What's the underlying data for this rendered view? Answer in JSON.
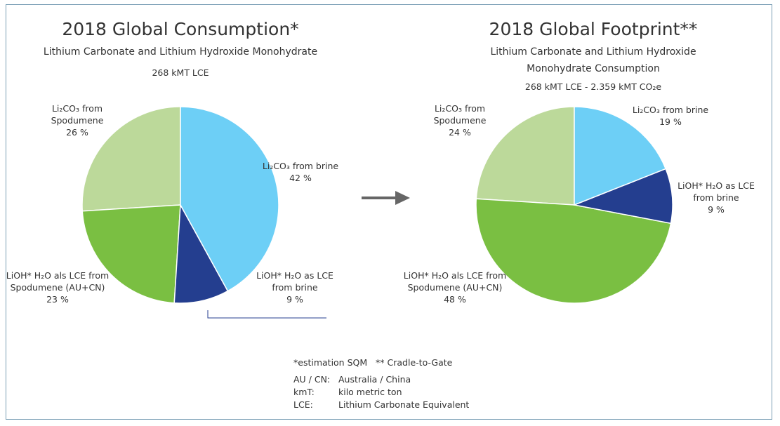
{
  "chart_data": [
    {
      "type": "pie",
      "title": "2018 Global Consumption*",
      "subtitle": [
        "Lithium Carbonate and Lithium Hydroxide Monohydrate",
        "268 kMT LCE"
      ],
      "categories": [
        "Li₂CO₃ from brine",
        "LiOH* H₂O as LCE from brine",
        "LiOH* H₂O als LCE from Spodumene (AU+CN)",
        "Li₂CO₃ from Spodumene"
      ],
      "values": [
        42,
        9,
        23,
        26
      ],
      "value_labels": [
        "42 %",
        "9 %",
        "23 %",
        "26 %"
      ],
      "colors": [
        "#6dcff6",
        "#243e8f",
        "#7abf42",
        "#bcd99a"
      ]
    },
    {
      "type": "pie",
      "title": "2018 Global Footprint**",
      "subtitle": [
        "Lithium Carbonate and Lithium Hydroxide Monohydrate Consumption",
        "268 kMT LCE - 2.359 kMT CO₂e"
      ],
      "categories": [
        "Li₂CO₃ from brine",
        "LiOH* H₂O as LCE from brine",
        "LiOH* H₂O als LCE from Spodumene (AU+CN)",
        "Li₂CO₃ from Spodumene"
      ],
      "values": [
        19,
        9,
        48,
        24
      ],
      "value_labels": [
        "19 %",
        "9 %",
        "48 %",
        "24 %"
      ],
      "colors": [
        "#6dcff6",
        "#243e8f",
        "#7abf42",
        "#bcd99a"
      ]
    }
  ],
  "footnote": "*estimation SQM   ** Cradle-to-Gate",
  "glossary": [
    [
      "AU / CN:",
      "Australia / China"
    ],
    [
      "kmT:",
      "kilo metric ton"
    ],
    [
      "LCE:",
      "Lithium Carbonate Equivalent"
    ]
  ]
}
